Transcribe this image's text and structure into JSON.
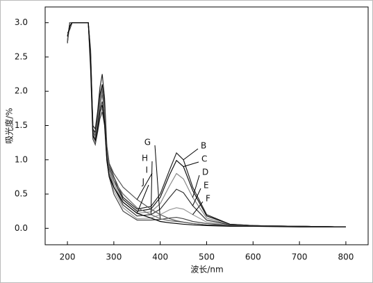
{
  "chart_data": {
    "type": "line",
    "x_label": "波长/nm",
    "y_label": "吸光度/%",
    "xlim": [
      152,
      848
    ],
    "ylim": [
      -0.24,
      3.23
    ],
    "xticks": [
      200,
      300,
      400,
      500,
      600,
      700,
      800
    ],
    "yticks": [
      {
        "value": 0,
        "label": "0.0"
      },
      {
        "value": 0.5,
        "label": "0.5"
      },
      {
        "value": 1,
        "label": "1.0"
      },
      {
        "value": 1.5,
        "label": "1.5"
      },
      {
        "value": 2,
        "label": "2.0"
      },
      {
        "value": 2.5,
        "label": "2.5"
      },
      {
        "value": 3,
        "label": "3.0"
      }
    ],
    "x": [
      200,
      205,
      210,
      240,
      245,
      250,
      255,
      260,
      265,
      270,
      275,
      280,
      285,
      290,
      300,
      320,
      350,
      380,
      400,
      420,
      435,
      450,
      470,
      500,
      550,
      600,
      700,
      800
    ],
    "series": [
      {
        "name": "B",
        "color": "#222222",
        "values": [
          2.7,
          3.0,
          3.0,
          3.0,
          3.0,
          2.6,
          1.5,
          1.45,
          1.7,
          2.05,
          2.25,
          1.9,
          1.2,
          0.95,
          0.75,
          0.45,
          0.28,
          0.32,
          0.5,
          0.85,
          1.1,
          1.0,
          0.6,
          0.2,
          0.06,
          0.04,
          0.03,
          0.02
        ]
      },
      {
        "name": "C",
        "color": "#111111",
        "values": [
          2.72,
          3.0,
          3.0,
          3.0,
          3.0,
          2.5,
          1.45,
          1.4,
          1.65,
          1.95,
          2.1,
          1.8,
          1.15,
          0.9,
          0.7,
          0.42,
          0.25,
          0.28,
          0.45,
          0.78,
          0.99,
          0.9,
          0.55,
          0.18,
          0.06,
          0.04,
          0.03,
          0.02
        ]
      },
      {
        "name": "D",
        "color": "#888888",
        "values": [
          2.75,
          2.95,
          3.0,
          3.0,
          3.0,
          2.45,
          1.4,
          1.35,
          1.55,
          1.85,
          2.0,
          1.7,
          1.1,
          0.85,
          0.65,
          0.38,
          0.22,
          0.24,
          0.36,
          0.62,
          0.8,
          0.72,
          0.45,
          0.15,
          0.05,
          0.04,
          0.03,
          0.02
        ]
      },
      {
        "name": "E",
        "color": "#333333",
        "values": [
          2.8,
          2.95,
          3.0,
          3.0,
          3.0,
          2.4,
          1.35,
          1.3,
          1.5,
          1.75,
          1.85,
          1.6,
          1.05,
          0.8,
          0.6,
          0.34,
          0.18,
          0.2,
          0.28,
          0.45,
          0.57,
          0.52,
          0.33,
          0.12,
          0.05,
          0.04,
          0.03,
          0.02
        ]
      },
      {
        "name": "F",
        "color": "#999999",
        "values": [
          2.8,
          2.9,
          3.0,
          3.0,
          3.0,
          2.35,
          1.3,
          1.25,
          1.45,
          1.65,
          1.75,
          1.55,
          1.0,
          0.78,
          0.55,
          0.3,
          0.14,
          0.15,
          0.2,
          0.27,
          0.3,
          0.28,
          0.2,
          0.09,
          0.04,
          0.03,
          0.03,
          0.02
        ]
      },
      {
        "name": "G",
        "color": "#444444",
        "values": [
          2.85,
          2.9,
          3.0,
          3.0,
          3.0,
          2.3,
          1.3,
          1.22,
          1.4,
          1.6,
          1.7,
          1.5,
          0.98,
          0.75,
          0.5,
          0.25,
          0.12,
          0.12,
          0.13,
          0.15,
          0.16,
          0.14,
          0.1,
          0.07,
          0.04,
          0.03,
          0.03,
          0.02
        ]
      },
      {
        "name": "H",
        "color": "#666666",
        "values": [
          2.75,
          3.0,
          3.0,
          3.0,
          3.0,
          2.5,
          1.4,
          1.3,
          1.5,
          1.8,
          1.95,
          1.7,
          1.1,
          0.88,
          0.7,
          0.5,
          0.3,
          0.2,
          0.14,
          0.11,
          0.1,
          0.09,
          0.07,
          0.05,
          0.04,
          0.03,
          0.03,
          0.02
        ]
      },
      {
        "name": "I",
        "color": "#555555",
        "values": [
          2.7,
          3.0,
          3.0,
          3.0,
          3.0,
          2.55,
          1.45,
          1.35,
          1.6,
          1.9,
          2.05,
          1.75,
          1.15,
          0.95,
          0.8,
          0.6,
          0.42,
          0.28,
          0.2,
          0.14,
          0.11,
          0.09,
          0.07,
          0.05,
          0.04,
          0.03,
          0.03,
          0.02
        ]
      },
      {
        "name": "J",
        "color": "#000000",
        "values": [
          2.8,
          2.95,
          3.0,
          3.0,
          3.0,
          2.4,
          1.35,
          1.28,
          1.45,
          1.7,
          1.8,
          1.55,
          1.0,
          0.75,
          0.6,
          0.38,
          0.22,
          0.15,
          0.1,
          0.08,
          0.07,
          0.06,
          0.05,
          0.04,
          0.03,
          0.03,
          0.02,
          0.02
        ]
      }
    ]
  }
}
